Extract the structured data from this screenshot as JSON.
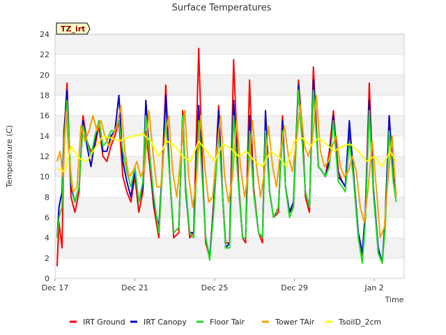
{
  "chart_data": {
    "type": "line",
    "title": "Surface Temperatures",
    "badge": "TZ_irt",
    "xlabel": "Time",
    "ylabel": "Temperature (C)",
    "xlim": [
      0,
      17.5
    ],
    "ylim": [
      0,
      24
    ],
    "yticks": [
      0,
      2,
      4,
      6,
      8,
      10,
      12,
      14,
      16,
      18,
      20,
      22,
      24
    ],
    "xticks": [
      {
        "pos": 0,
        "label": "Dec 17"
      },
      {
        "pos": 4,
        "label": "Dec 21"
      },
      {
        "pos": 8,
        "label": "Dec 25"
      },
      {
        "pos": 12,
        "label": "Dec 29"
      },
      {
        "pos": 16,
        "label": "Jan 2"
      }
    ],
    "grid": "horizontal-bands",
    "legend_position": "bottom",
    "series": [
      {
        "name": "IRT Ground",
        "color": "#ff0000",
        "x": [
          0.1,
          0.2,
          0.35,
          0.45,
          0.6,
          0.8,
          1.0,
          1.2,
          1.4,
          1.6,
          1.8,
          2.0,
          2.2,
          2.4,
          2.6,
          2.8,
          3.0,
          3.2,
          3.4,
          3.6,
          3.8,
          4.0,
          4.2,
          4.4,
          4.55,
          4.75,
          4.95,
          5.2,
          5.4,
          5.55,
          5.75,
          5.95,
          6.2,
          6.4,
          6.55,
          6.75,
          6.95,
          7.2,
          7.4,
          7.55,
          7.75,
          7.95,
          8.2,
          8.4,
          8.55,
          8.75,
          8.95,
          9.2,
          9.4,
          9.55,
          9.75,
          9.95,
          10.2,
          10.4,
          10.55,
          10.75,
          10.95,
          11.2,
          11.4,
          11.55,
          11.75,
          11.95,
          12.2,
          12.4,
          12.55,
          12.75,
          12.95,
          13.2,
          13.4,
          13.55,
          13.75,
          13.95,
          14.2,
          14.4,
          14.55,
          14.75,
          14.95,
          15.2,
          15.4,
          15.55,
          15.75,
          15.95,
          16.2,
          16.4,
          16.55,
          16.75,
          16.95,
          17.1
        ],
        "y": [
          1.2,
          5.5,
          3.0,
          14.0,
          19.2,
          8.0,
          6.5,
          8.5,
          16.0,
          13.5,
          12.5,
          13.0,
          15.0,
          12.0,
          11.5,
          13.0,
          14.0,
          15.5,
          10.0,
          8.5,
          7.5,
          10.0,
          6.5,
          8.5,
          14.5,
          11.0,
          7.0,
          4.0,
          12.0,
          19.0,
          10.0,
          4.0,
          4.5,
          16.5,
          9.0,
          4.0,
          4.5,
          22.6,
          10.0,
          3.5,
          2.0,
          7.5,
          17.0,
          8.0,
          3.5,
          3.5,
          21.5,
          9.5,
          4.0,
          3.5,
          19.5,
          9.0,
          4.5,
          3.5,
          16.0,
          8.5,
          6.0,
          6.5,
          16.0,
          9.0,
          6.5,
          7.0,
          19.5,
          14.5,
          8.0,
          6.5,
          20.8,
          11.0,
          10.5,
          10.0,
          12.5,
          16.5,
          10.5,
          9.5,
          9.0,
          14.5,
          10.5,
          4.0,
          2.0,
          6.0,
          19.2,
          9.0,
          2.5,
          1.5,
          5.5,
          16.0,
          10.0,
          8.0
        ]
      },
      {
        "name": "IRT Canopy",
        "color": "#0000cc",
        "x": [
          0.1,
          0.2,
          0.35,
          0.45,
          0.6,
          0.8,
          1.0,
          1.2,
          1.4,
          1.6,
          1.8,
          2.0,
          2.2,
          2.4,
          2.6,
          2.8,
          3.0,
          3.2,
          3.4,
          3.6,
          3.8,
          4.0,
          4.2,
          4.4,
          4.55,
          4.75,
          4.95,
          5.2,
          5.4,
          5.55,
          5.75,
          5.95,
          6.2,
          6.4,
          6.55,
          6.75,
          6.95,
          7.2,
          7.4,
          7.55,
          7.75,
          7.95,
          8.2,
          8.4,
          8.55,
          8.75,
          8.95,
          9.2,
          9.4,
          9.55,
          9.75,
          9.95,
          10.2,
          10.4,
          10.55,
          10.75,
          10.95,
          11.2,
          11.4,
          11.55,
          11.75,
          11.95,
          12.2,
          12.4,
          12.55,
          12.75,
          12.95,
          13.2,
          13.4,
          13.55,
          13.75,
          13.95,
          14.2,
          14.4,
          14.55,
          14.75,
          14.95,
          15.2,
          15.4,
          15.55,
          15.75,
          15.95,
          16.2,
          16.4,
          16.55,
          16.75,
          16.95,
          17.1
        ],
        "y": [
          4.0,
          7.0,
          8.5,
          14.5,
          18.5,
          9.0,
          7.5,
          9.0,
          15.5,
          13.0,
          11.0,
          13.5,
          15.5,
          12.5,
          12.5,
          14.0,
          14.5,
          18.0,
          11.5,
          9.5,
          8.0,
          10.5,
          7.5,
          9.0,
          17.5,
          12.0,
          7.5,
          5.0,
          11.5,
          18.0,
          10.0,
          4.5,
          5.0,
          16.0,
          8.5,
          4.5,
          4.5,
          17.0,
          9.5,
          4.0,
          2.0,
          7.0,
          16.5,
          8.0,
          3.0,
          3.5,
          17.5,
          9.0,
          4.0,
          4.0,
          16.0,
          8.5,
          4.5,
          4.0,
          16.5,
          8.5,
          6.0,
          7.0,
          15.5,
          9.0,
          6.5,
          7.5,
          19.0,
          13.5,
          8.5,
          7.0,
          19.5,
          11.0,
          10.5,
          10.0,
          11.5,
          16.0,
          10.0,
          9.5,
          9.0,
          15.5,
          10.5,
          4.5,
          2.5,
          6.5,
          17.5,
          9.0,
          3.0,
          1.5,
          6.0,
          16.0,
          10.0,
          8.0
        ]
      },
      {
        "name": "Floor Tair",
        "color": "#22dd22",
        "x": [
          0.1,
          0.2,
          0.35,
          0.45,
          0.6,
          0.8,
          1.0,
          1.2,
          1.4,
          1.6,
          1.8,
          2.0,
          2.2,
          2.4,
          2.6,
          2.8,
          3.0,
          3.2,
          3.4,
          3.6,
          3.8,
          4.0,
          4.2,
          4.4,
          4.55,
          4.75,
          4.95,
          5.2,
          5.4,
          5.55,
          5.75,
          5.95,
          6.2,
          6.4,
          6.55,
          6.75,
          6.95,
          7.2,
          7.4,
          7.55,
          7.75,
          7.95,
          8.2,
          8.4,
          8.55,
          8.75,
          8.95,
          9.2,
          9.4,
          9.55,
          9.75,
          9.95,
          10.2,
          10.4,
          10.55,
          10.75,
          10.95,
          11.2,
          11.4,
          11.55,
          11.75,
          11.95,
          12.2,
          12.4,
          12.55,
          12.75,
          12.95,
          13.2,
          13.4,
          13.55,
          13.75,
          13.95,
          14.2,
          14.4,
          14.55,
          14.75,
          14.95,
          15.2,
          15.4,
          15.55,
          15.75,
          15.95,
          16.2,
          16.4,
          16.55,
          16.75,
          16.95,
          17.1
        ],
        "y": [
          4.0,
          6.0,
          7.0,
          13.5,
          17.5,
          9.5,
          7.5,
          9.0,
          15.0,
          13.5,
          12.0,
          14.0,
          15.5,
          13.0,
          13.5,
          14.5,
          14.5,
          15.5,
          12.5,
          10.5,
          9.0,
          11.0,
          7.5,
          9.5,
          16.0,
          12.0,
          8.0,
          4.5,
          11.0,
          15.5,
          10.0,
          4.5,
          5.0,
          16.0,
          9.0,
          4.5,
          4.0,
          15.5,
          9.0,
          4.0,
          1.8,
          6.5,
          14.5,
          8.0,
          3.0,
          3.0,
          16.0,
          9.0,
          4.0,
          4.0,
          14.5,
          8.5,
          4.5,
          4.0,
          14.5,
          8.5,
          6.0,
          7.0,
          14.5,
          9.0,
          6.0,
          7.0,
          18.5,
          13.0,
          8.5,
          7.0,
          18.5,
          11.0,
          10.5,
          10.0,
          11.0,
          15.5,
          9.5,
          9.0,
          8.5,
          13.5,
          10.0,
          4.0,
          1.5,
          5.5,
          16.5,
          8.5,
          2.5,
          1.5,
          5.0,
          14.5,
          9.5,
          7.5
        ]
      },
      {
        "name": "Tower TAir",
        "color": "#f5a000",
        "x": [
          0.1,
          0.25,
          0.4,
          0.55,
          0.7,
          0.9,
          1.1,
          1.3,
          1.5,
          1.7,
          1.9,
          2.1,
          2.3,
          2.5,
          2.7,
          2.9,
          3.1,
          3.3,
          3.5,
          3.7,
          3.9,
          4.1,
          4.3,
          4.5,
          4.7,
          4.9,
          5.1,
          5.3,
          5.5,
          5.7,
          5.9,
          6.1,
          6.3,
          6.5,
          6.7,
          6.9,
          7.1,
          7.3,
          7.5,
          7.7,
          7.9,
          8.1,
          8.3,
          8.5,
          8.7,
          8.9,
          9.1,
          9.3,
          9.5,
          9.7,
          9.9,
          10.1,
          10.3,
          10.5,
          10.7,
          10.9,
          11.1,
          11.3,
          11.5,
          11.7,
          11.9,
          12.1,
          12.3,
          12.5,
          12.7,
          12.9,
          13.1,
          13.3,
          13.5,
          13.7,
          13.9,
          14.1,
          14.3,
          14.5,
          14.7,
          14.9,
          15.1,
          15.3,
          15.5,
          15.7,
          15.9,
          16.1,
          16.3,
          16.5,
          16.7,
          16.9,
          17.1
        ],
        "y": [
          11.5,
          12.5,
          10.0,
          16.5,
          12.0,
          8.5,
          9.0,
          15.0,
          13.5,
          14.5,
          16.0,
          14.5,
          15.5,
          14.0,
          13.0,
          14.0,
          15.0,
          17.0,
          12.5,
          10.0,
          10.5,
          11.5,
          10.0,
          11.0,
          16.5,
          12.5,
          9.0,
          9.0,
          14.0,
          16.0,
          10.5,
          8.0,
          12.0,
          16.5,
          10.0,
          7.0,
          10.0,
          16.0,
          11.0,
          7.5,
          8.0,
          12.5,
          16.0,
          10.0,
          7.5,
          10.0,
          15.5,
          11.0,
          8.0,
          10.5,
          15.5,
          11.0,
          8.0,
          10.5,
          15.0,
          11.0,
          9.0,
          12.5,
          15.0,
          12.0,
          10.5,
          13.5,
          17.0,
          13.0,
          12.0,
          13.5,
          18.0,
          12.5,
          11.0,
          11.5,
          13.0,
          14.0,
          11.0,
          10.0,
          10.5,
          12.0,
          10.5,
          7.0,
          5.5,
          9.0,
          13.5,
          9.0,
          4.0,
          5.0,
          10.0,
          14.0,
          8.0
        ]
      },
      {
        "name": "TsoilD_2cm",
        "color": "#ffff00",
        "x": [
          0.1,
          0.5,
          0.8,
          1.2,
          1.6,
          2.0,
          2.4,
          2.8,
          3.2,
          3.6,
          4.0,
          4.4,
          4.8,
          5.2,
          5.6,
          6.0,
          6.4,
          6.8,
          7.2,
          7.6,
          8.0,
          8.4,
          8.8,
          9.2,
          9.6,
          10.0,
          10.4,
          10.8,
          11.2,
          11.6,
          12.0,
          12.4,
          12.8,
          13.2,
          13.6,
          14.0,
          14.4,
          14.8,
          15.2,
          15.6,
          16.0,
          16.4,
          16.8,
          17.1
        ],
        "y": [
          10.8,
          10.5,
          13.0,
          11.8,
          11.5,
          12.8,
          14.0,
          13.8,
          13.5,
          13.8,
          14.0,
          14.2,
          13.5,
          12.0,
          13.5,
          13.0,
          12.0,
          11.5,
          13.5,
          12.5,
          11.5,
          13.2,
          12.8,
          12.0,
          12.5,
          11.5,
          11.0,
          12.5,
          12.0,
          11.0,
          13.5,
          13.8,
          13.0,
          13.8,
          13.2,
          12.5,
          13.0,
          13.2,
          12.5,
          11.5,
          12.0,
          11.0,
          12.5,
          11.5
        ]
      }
    ]
  }
}
